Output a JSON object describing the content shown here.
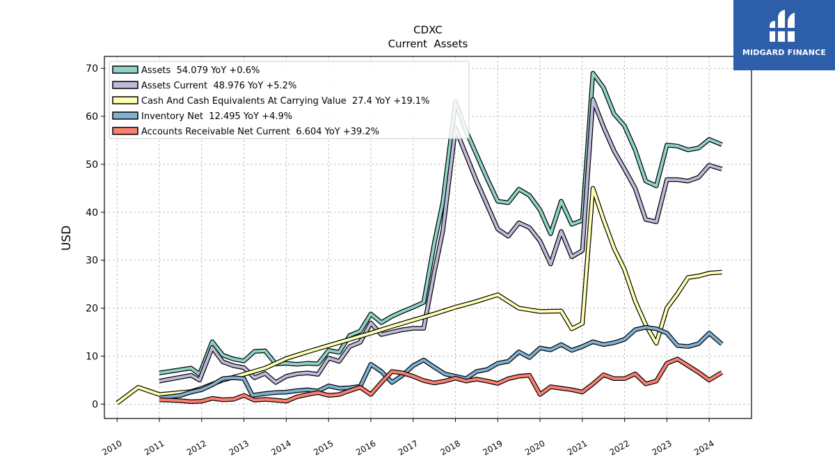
{
  "chart_data": {
    "type": "line",
    "title": "CDXC",
    "subtitle": "Current  Assets",
    "ylabel": "USD",
    "xlabel": "",
    "xlim": [
      2009.7,
      2025.0
    ],
    "ylim": [
      -3,
      72.5
    ],
    "yticks": [
      0,
      10,
      20,
      30,
      40,
      50,
      60,
      70
    ],
    "xticks": [
      2010,
      2011,
      2012,
      2013,
      2014,
      2015,
      2016,
      2017,
      2018,
      2019,
      2020,
      2021,
      2022,
      2023,
      2024
    ],
    "grid": true,
    "legend_position": "top-left",
    "series": [
      {
        "name": "Assets  54.079 YoY +0.6%",
        "color": "#8dd3c7",
        "points": [
          [
            2011.0,
            6.5
          ],
          [
            2011.75,
            7.5
          ],
          [
            2011.95,
            6.2
          ],
          [
            2012.25,
            13.0
          ],
          [
            2012.5,
            10.2
          ],
          [
            2012.75,
            9.4
          ],
          [
            2013.0,
            9.0
          ],
          [
            2013.25,
            11.0
          ],
          [
            2013.5,
            11.1
          ],
          [
            2013.75,
            8.4
          ],
          [
            2014.0,
            8.5
          ],
          [
            2014.25,
            8.3
          ],
          [
            2014.5,
            8.5
          ],
          [
            2014.75,
            8.4
          ],
          [
            2015.0,
            11.2
          ],
          [
            2015.25,
            10.8
          ],
          [
            2015.5,
            14.3
          ],
          [
            2015.75,
            15.2
          ],
          [
            2016.0,
            18.8
          ],
          [
            2016.25,
            17.0
          ],
          [
            2016.5,
            18.3
          ],
          [
            2016.75,
            19.3
          ],
          [
            2017.0,
            20.2
          ],
          [
            2017.25,
            21.2
          ],
          [
            2017.5,
            33.5
          ],
          [
            2017.7,
            42.0
          ],
          [
            2018.0,
            63.0
          ],
          [
            2018.25,
            57.0
          ],
          [
            2018.5,
            52.0
          ],
          [
            2018.75,
            47.0
          ],
          [
            2019.0,
            42.3
          ],
          [
            2019.25,
            42.0
          ],
          [
            2019.5,
            44.8
          ],
          [
            2019.75,
            43.5
          ],
          [
            2020.0,
            40.5
          ],
          [
            2020.25,
            35.5
          ],
          [
            2020.5,
            42.3
          ],
          [
            2020.75,
            37.5
          ],
          [
            2021.0,
            38.3
          ],
          [
            2021.25,
            69.0
          ],
          [
            2021.5,
            66.0
          ],
          [
            2021.75,
            60.5
          ],
          [
            2022.0,
            58.0
          ],
          [
            2022.25,
            53.0
          ],
          [
            2022.5,
            46.5
          ],
          [
            2022.75,
            45.5
          ],
          [
            2023.0,
            54.0
          ],
          [
            2023.25,
            53.8
          ],
          [
            2023.5,
            53.0
          ],
          [
            2023.75,
            53.4
          ],
          [
            2024.0,
            55.2
          ],
          [
            2024.3,
            54.1
          ]
        ]
      },
      {
        "name": "Assets Current  48.976 YoY +5.2%",
        "color": "#bebada",
        "points": [
          [
            2011.0,
            4.8
          ],
          [
            2011.75,
            6.0
          ],
          [
            2011.95,
            5.0
          ],
          [
            2012.25,
            11.8
          ],
          [
            2012.5,
            8.8
          ],
          [
            2012.75,
            8.0
          ],
          [
            2013.0,
            7.6
          ],
          [
            2013.25,
            5.5
          ],
          [
            2013.5,
            6.4
          ],
          [
            2013.75,
            4.5
          ],
          [
            2014.0,
            5.8
          ],
          [
            2014.25,
            6.3
          ],
          [
            2014.5,
            6.5
          ],
          [
            2014.75,
            6.2
          ],
          [
            2015.0,
            9.6
          ],
          [
            2015.25,
            8.9
          ],
          [
            2015.5,
            12.0
          ],
          [
            2015.75,
            12.9
          ],
          [
            2016.0,
            16.9
          ],
          [
            2016.25,
            14.5
          ],
          [
            2016.5,
            15.0
          ],
          [
            2016.75,
            15.5
          ],
          [
            2017.0,
            15.8
          ],
          [
            2017.25,
            15.8
          ],
          [
            2017.5,
            27.5
          ],
          [
            2017.7,
            36.0
          ],
          [
            2018.0,
            57.5
          ],
          [
            2018.25,
            52.0
          ],
          [
            2018.5,
            46.5
          ],
          [
            2018.75,
            41.5
          ],
          [
            2019.0,
            36.5
          ],
          [
            2019.25,
            35.0
          ],
          [
            2019.5,
            37.8
          ],
          [
            2019.75,
            36.8
          ],
          [
            2020.0,
            34.0
          ],
          [
            2020.25,
            29.2
          ],
          [
            2020.5,
            36.0
          ],
          [
            2020.75,
            30.7
          ],
          [
            2021.0,
            32.0
          ],
          [
            2021.25,
            63.5
          ],
          [
            2021.5,
            57.8
          ],
          [
            2021.75,
            52.8
          ],
          [
            2022.0,
            49.0
          ],
          [
            2022.25,
            45.0
          ],
          [
            2022.5,
            38.5
          ],
          [
            2022.75,
            38.0
          ],
          [
            2023.0,
            46.8
          ],
          [
            2023.25,
            46.8
          ],
          [
            2023.5,
            46.5
          ],
          [
            2023.75,
            47.3
          ],
          [
            2024.0,
            49.8
          ],
          [
            2024.3,
            49.0
          ]
        ]
      },
      {
        "name": "Cash And Cash Equivalents At Carrying Value  27.4 YoY +19.1%",
        "color": "#ffffb3",
        "points": [
          [
            2010.0,
            0.2
          ],
          [
            2010.5,
            3.5
          ],
          [
            2011.0,
            2.0
          ],
          [
            2011.75,
            2.6
          ],
          [
            2012.0,
            3.3
          ],
          [
            2012.5,
            5.0
          ],
          [
            2013.0,
            6.2
          ],
          [
            2013.5,
            7.5
          ],
          [
            2014.0,
            9.5
          ],
          [
            2014.5,
            10.9
          ],
          [
            2015.0,
            12.2
          ],
          [
            2015.5,
            13.5
          ],
          [
            2016.0,
            14.8
          ],
          [
            2016.5,
            16.2
          ],
          [
            2017.0,
            17.5
          ],
          [
            2017.5,
            18.8
          ],
          [
            2018.0,
            20.2
          ],
          [
            2018.5,
            21.4
          ],
          [
            2019.0,
            22.8
          ],
          [
            2019.5,
            20.0
          ],
          [
            2020.0,
            19.3
          ],
          [
            2020.5,
            19.4
          ],
          [
            2020.75,
            15.7
          ],
          [
            2021.0,
            16.8
          ],
          [
            2021.25,
            45.0
          ],
          [
            2021.5,
            38.5
          ],
          [
            2021.75,
            32.5
          ],
          [
            2022.0,
            28.0
          ],
          [
            2022.25,
            21.5
          ],
          [
            2022.5,
            16.5
          ],
          [
            2022.75,
            12.7
          ],
          [
            2023.0,
            20.0
          ],
          [
            2023.25,
            23.0
          ],
          [
            2023.5,
            26.4
          ],
          [
            2023.75,
            26.7
          ],
          [
            2024.0,
            27.3
          ],
          [
            2024.3,
            27.5
          ]
        ]
      },
      {
        "name": "Inventory Net  12.495 YoY +4.9%",
        "color": "#80b1d3",
        "points": [
          [
            2011.0,
            1.3
          ],
          [
            2011.5,
            1.8
          ],
          [
            2011.75,
            2.5
          ],
          [
            2012.0,
            3.0
          ],
          [
            2012.25,
            4.0
          ],
          [
            2012.5,
            5.3
          ],
          [
            2012.75,
            5.5
          ],
          [
            2013.0,
            5.3
          ],
          [
            2013.2,
            1.8
          ],
          [
            2013.5,
            2.2
          ],
          [
            2013.75,
            2.4
          ],
          [
            2014.0,
            2.5
          ],
          [
            2014.25,
            2.8
          ],
          [
            2014.5,
            3.0
          ],
          [
            2014.75,
            2.7
          ],
          [
            2015.0,
            3.8
          ],
          [
            2015.25,
            3.3
          ],
          [
            2015.5,
            3.4
          ],
          [
            2015.75,
            3.7
          ],
          [
            2016.0,
            8.3
          ],
          [
            2016.25,
            6.8
          ],
          [
            2016.5,
            4.5
          ],
          [
            2016.75,
            6.0
          ],
          [
            2017.0,
            8.0
          ],
          [
            2017.25,
            9.2
          ],
          [
            2017.5,
            7.7
          ],
          [
            2017.75,
            6.3
          ],
          [
            2018.0,
            5.8
          ],
          [
            2018.25,
            5.3
          ],
          [
            2018.5,
            6.8
          ],
          [
            2018.75,
            7.2
          ],
          [
            2019.0,
            8.5
          ],
          [
            2019.25,
            8.9
          ],
          [
            2019.5,
            10.9
          ],
          [
            2019.75,
            9.7
          ],
          [
            2020.0,
            11.7
          ],
          [
            2020.25,
            11.3
          ],
          [
            2020.5,
            12.4
          ],
          [
            2020.75,
            11.2
          ],
          [
            2021.0,
            12.0
          ],
          [
            2021.25,
            13.0
          ],
          [
            2021.5,
            12.4
          ],
          [
            2021.75,
            12.8
          ],
          [
            2022.0,
            13.5
          ],
          [
            2022.25,
            15.5
          ],
          [
            2022.5,
            16.0
          ],
          [
            2022.75,
            15.7
          ],
          [
            2023.0,
            14.8
          ],
          [
            2023.25,
            12.2
          ],
          [
            2023.5,
            12.0
          ],
          [
            2023.75,
            12.6
          ],
          [
            2024.0,
            14.8
          ],
          [
            2024.3,
            12.5
          ]
        ]
      },
      {
        "name": "Accounts Receivable Net Current  6.604 YoY +39.2%",
        "color": "#fb8072",
        "points": [
          [
            2011.0,
            0.9
          ],
          [
            2011.5,
            0.7
          ],
          [
            2011.75,
            0.5
          ],
          [
            2012.0,
            0.6
          ],
          [
            2012.25,
            1.2
          ],
          [
            2012.5,
            0.9
          ],
          [
            2012.75,
            1.0
          ],
          [
            2013.0,
            1.8
          ],
          [
            2013.25,
            0.8
          ],
          [
            2013.5,
            1.0
          ],
          [
            2013.75,
            0.8
          ],
          [
            2014.0,
            0.6
          ],
          [
            2014.25,
            1.5
          ],
          [
            2014.5,
            2.0
          ],
          [
            2014.75,
            2.4
          ],
          [
            2015.0,
            1.8
          ],
          [
            2015.25,
            2.0
          ],
          [
            2015.5,
            2.8
          ],
          [
            2015.75,
            3.5
          ],
          [
            2016.0,
            2.0
          ],
          [
            2016.25,
            4.5
          ],
          [
            2016.5,
            6.8
          ],
          [
            2016.75,
            6.5
          ],
          [
            2017.0,
            5.8
          ],
          [
            2017.25,
            4.9
          ],
          [
            2017.5,
            4.4
          ],
          [
            2017.75,
            4.8
          ],
          [
            2018.0,
            5.4
          ],
          [
            2018.25,
            4.8
          ],
          [
            2018.5,
            5.2
          ],
          [
            2018.75,
            4.8
          ],
          [
            2019.0,
            4.3
          ],
          [
            2019.25,
            5.3
          ],
          [
            2019.5,
            5.8
          ],
          [
            2019.75,
            6.0
          ],
          [
            2020.0,
            2.0
          ],
          [
            2020.25,
            3.6
          ],
          [
            2020.5,
            3.3
          ],
          [
            2020.75,
            3.0
          ],
          [
            2021.0,
            2.5
          ],
          [
            2021.25,
            4.2
          ],
          [
            2021.5,
            6.1
          ],
          [
            2021.75,
            5.3
          ],
          [
            2022.0,
            5.3
          ],
          [
            2022.25,
            6.3
          ],
          [
            2022.5,
            4.2
          ],
          [
            2022.75,
            4.8
          ],
          [
            2023.0,
            8.5
          ],
          [
            2023.25,
            9.4
          ],
          [
            2023.5,
            8.0
          ],
          [
            2023.75,
            6.6
          ],
          [
            2024.0,
            5.0
          ],
          [
            2024.3,
            6.6
          ]
        ]
      }
    ]
  },
  "logo": {
    "text": "MIDGARD FINANCE",
    "color": "#2d5eaa"
  }
}
